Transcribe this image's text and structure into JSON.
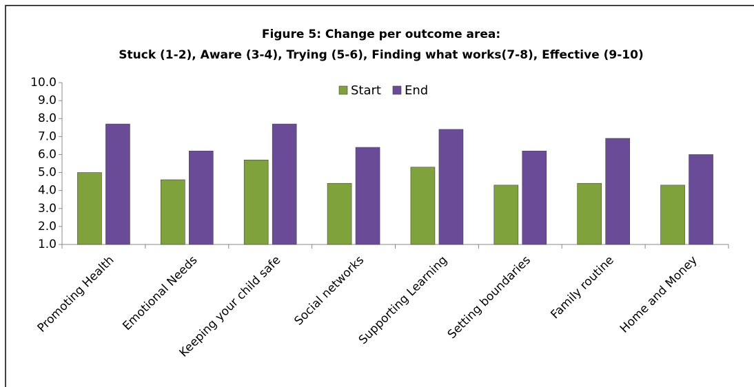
{
  "chart_data": {
    "type": "bar",
    "title": [
      "Figure 5: Change per outcome area:",
      "Stuck (1-2), Aware (3-4), Trying (5-6), Finding what works(7-8), Effective (9-10)"
    ],
    "categories": [
      "Promoting Health",
      "Emotional Needs",
      "Keeping your child safe",
      "Social networks",
      "Supporting Learning",
      "Setting boundaries",
      "Family routine",
      "Home and Money"
    ],
    "series": [
      {
        "name": "Start",
        "color": "#7fa23c",
        "values": [
          5.0,
          4.6,
          5.7,
          4.4,
          5.3,
          4.3,
          4.4,
          4.3
        ]
      },
      {
        "name": "End",
        "color": "#6a4b98",
        "values": [
          7.7,
          6.2,
          7.7,
          6.4,
          7.4,
          6.2,
          6.9,
          6.0
        ]
      }
    ],
    "ylim": [
      1,
      10
    ],
    "yticks": [
      {
        "value": 1,
        "label": "1.0"
      },
      {
        "value": 2,
        "label": "2.0"
      },
      {
        "value": 3,
        "label": "3.0"
      },
      {
        "value": 4,
        "label": "4.0"
      },
      {
        "value": 5,
        "label": "5.0"
      },
      {
        "value": 6,
        "label": "6.0"
      },
      {
        "value": 7,
        "label": "7.0"
      },
      {
        "value": 8,
        "label": "8.0"
      },
      {
        "value": 9,
        "label": "9.0"
      },
      {
        "value": 10,
        "label": "10.0"
      }
    ],
    "legend": "top"
  }
}
